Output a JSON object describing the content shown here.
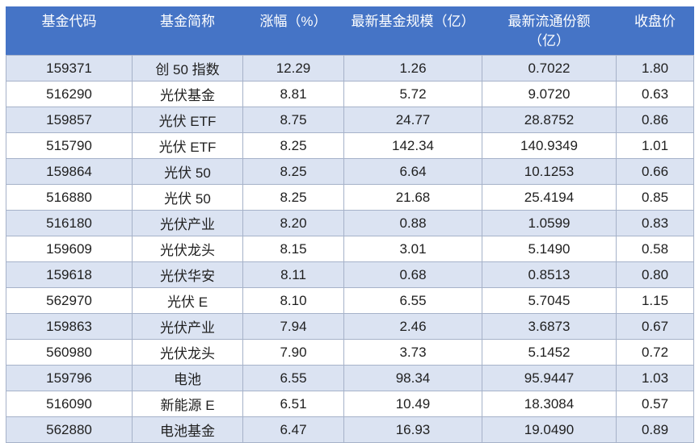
{
  "chart_data": {
    "type": "table",
    "columns": [
      {
        "label": "基金代码",
        "line2": ""
      },
      {
        "label": "基金简称",
        "line2": ""
      },
      {
        "label": "涨幅（%）",
        "line2": ""
      },
      {
        "label": "最新基金规模（亿）",
        "line2": ""
      },
      {
        "label": "最新流通份额",
        "line2": "（亿）"
      },
      {
        "label": "收盘价",
        "line2": ""
      }
    ],
    "rows": [
      [
        "159371",
        "创 50 指数",
        "12.29",
        "1.26",
        "0.7022",
        "1.80"
      ],
      [
        "516290",
        "光伏基金",
        "8.81",
        "5.72",
        "9.0720",
        "0.63"
      ],
      [
        "159857",
        "光伏 ETF",
        "8.75",
        "24.77",
        "28.8752",
        "0.86"
      ],
      [
        "515790",
        "光伏 ETF",
        "8.25",
        "142.34",
        "140.9349",
        "1.01"
      ],
      [
        "159864",
        "光伏 50",
        "8.25",
        "6.64",
        "10.1253",
        "0.66"
      ],
      [
        "516880",
        "光伏 50",
        "8.25",
        "21.68",
        "25.4194",
        "0.85"
      ],
      [
        "516180",
        "光伏产业",
        "8.20",
        "0.88",
        "1.0599",
        "0.83"
      ],
      [
        "159609",
        "光伏龙头",
        "8.15",
        "3.01",
        "5.1490",
        "0.58"
      ],
      [
        "159618",
        "光伏华安",
        "8.11",
        "0.68",
        "0.8513",
        "0.80"
      ],
      [
        "562970",
        "光伏 E",
        "8.10",
        "6.55",
        "5.7045",
        "1.15"
      ],
      [
        "159863",
        "光伏产业",
        "7.94",
        "2.46",
        "3.6873",
        "0.67"
      ],
      [
        "560980",
        "光伏龙头",
        "7.90",
        "3.73",
        "5.1452",
        "0.72"
      ],
      [
        "159796",
        "电池",
        "6.55",
        "98.34",
        "95.9447",
        "1.03"
      ],
      [
        "516090",
        "新能源 E",
        "6.51",
        "10.49",
        "18.3084",
        "0.57"
      ],
      [
        "562880",
        "电池基金",
        "6.47",
        "16.93",
        "19.0490",
        "0.89"
      ]
    ]
  },
  "colors": {
    "header_bg": "#4574c6",
    "header_text": "#ffffff",
    "row_alt_bg": "#dbe3f2",
    "row_bg": "#ffffff",
    "border": "#a6b2c9",
    "cell_text": "#1f1f1f"
  }
}
